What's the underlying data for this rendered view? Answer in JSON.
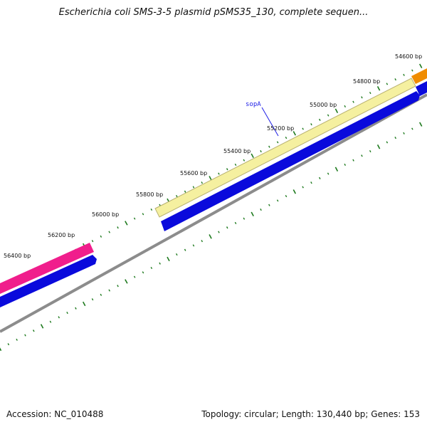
{
  "title": "Escherichia coli SMS-3-5 plasmid pSMS35_130, complete sequen...",
  "footer": {
    "accession_label": "Accession:",
    "accession": "NC_010488",
    "topology_label": "Topology:",
    "topology": "circular",
    "length_label": "Length:",
    "length": "130,440 bp",
    "genes_label": "Genes:",
    "genes": "153"
  },
  "map": {
    "tick_labels": [
      "54600 bp",
      "54800 bp",
      "55000 bp",
      "55200 bp",
      "55400 bp",
      "55600 bp",
      "55800 bp",
      "56000 bp",
      "56200 bp",
      "56400 bp"
    ],
    "gene_label": "sopA",
    "colors": {
      "title": "#111111",
      "tick": "#1e7a1e",
      "backbone": "#8c8c8c",
      "cds_forward": "#0a0adc",
      "gene_sopA": "#f5f0a0",
      "gene_pink": "#f01e8c",
      "gene_orange": "#f08c00",
      "gene_label": "#1e1ee6"
    }
  }
}
